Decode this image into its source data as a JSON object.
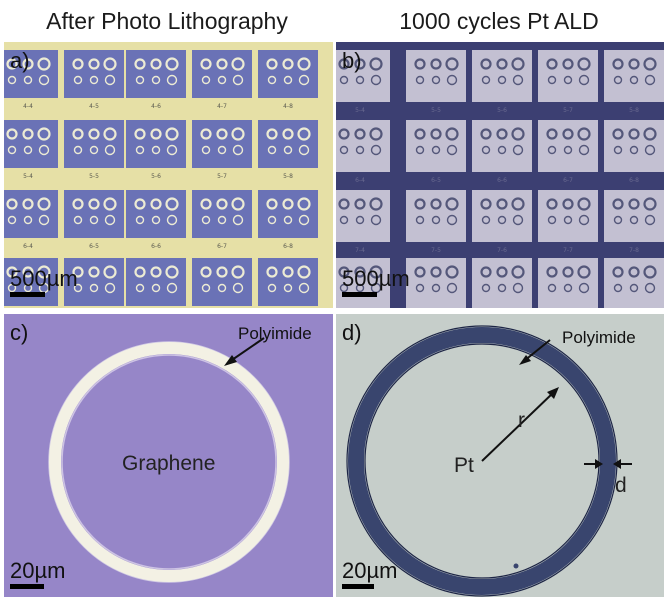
{
  "headers": {
    "left": "After Photo Lithography",
    "right": "1000 cycles Pt ALD"
  },
  "panels": {
    "a": {
      "label": "a)",
      "scale": "500µm",
      "die_labels": [
        "4-4",
        "4-5",
        "4-6",
        "4-7",
        "4-8",
        "5-4",
        "5-5",
        "5-6",
        "5-7",
        "5-8",
        "6-4",
        "6-5",
        "6-6",
        "6-7",
        "6-8"
      ]
    },
    "b": {
      "label": "b)",
      "scale": "500µm",
      "die_labels": [
        "5-4",
        "5-5",
        "5-6",
        "5-7",
        "5-8",
        "6-4",
        "6-5",
        "6-6",
        "6-7",
        "6-8",
        "7-4",
        "7-5",
        "7-6",
        "7-7",
        "7-8"
      ]
    },
    "c": {
      "label": "c)",
      "scale": "20µm",
      "polyimide": "Polyimide",
      "graphene": "Graphene"
    },
    "d": {
      "label": "d)",
      "scale": "20µm",
      "polyimide": "Polyimide",
      "pt": "Pt",
      "r": "r",
      "d": "d"
    }
  },
  "colors": {
    "a_bg": "#e6e0a6",
    "a_square": "#6a72b6",
    "b_bg": "#3c3f72",
    "b_square": "#c3c0d2",
    "c_bg": "#9686c8",
    "d_bg": "#c6ceca",
    "d_ring": "#39456e"
  }
}
